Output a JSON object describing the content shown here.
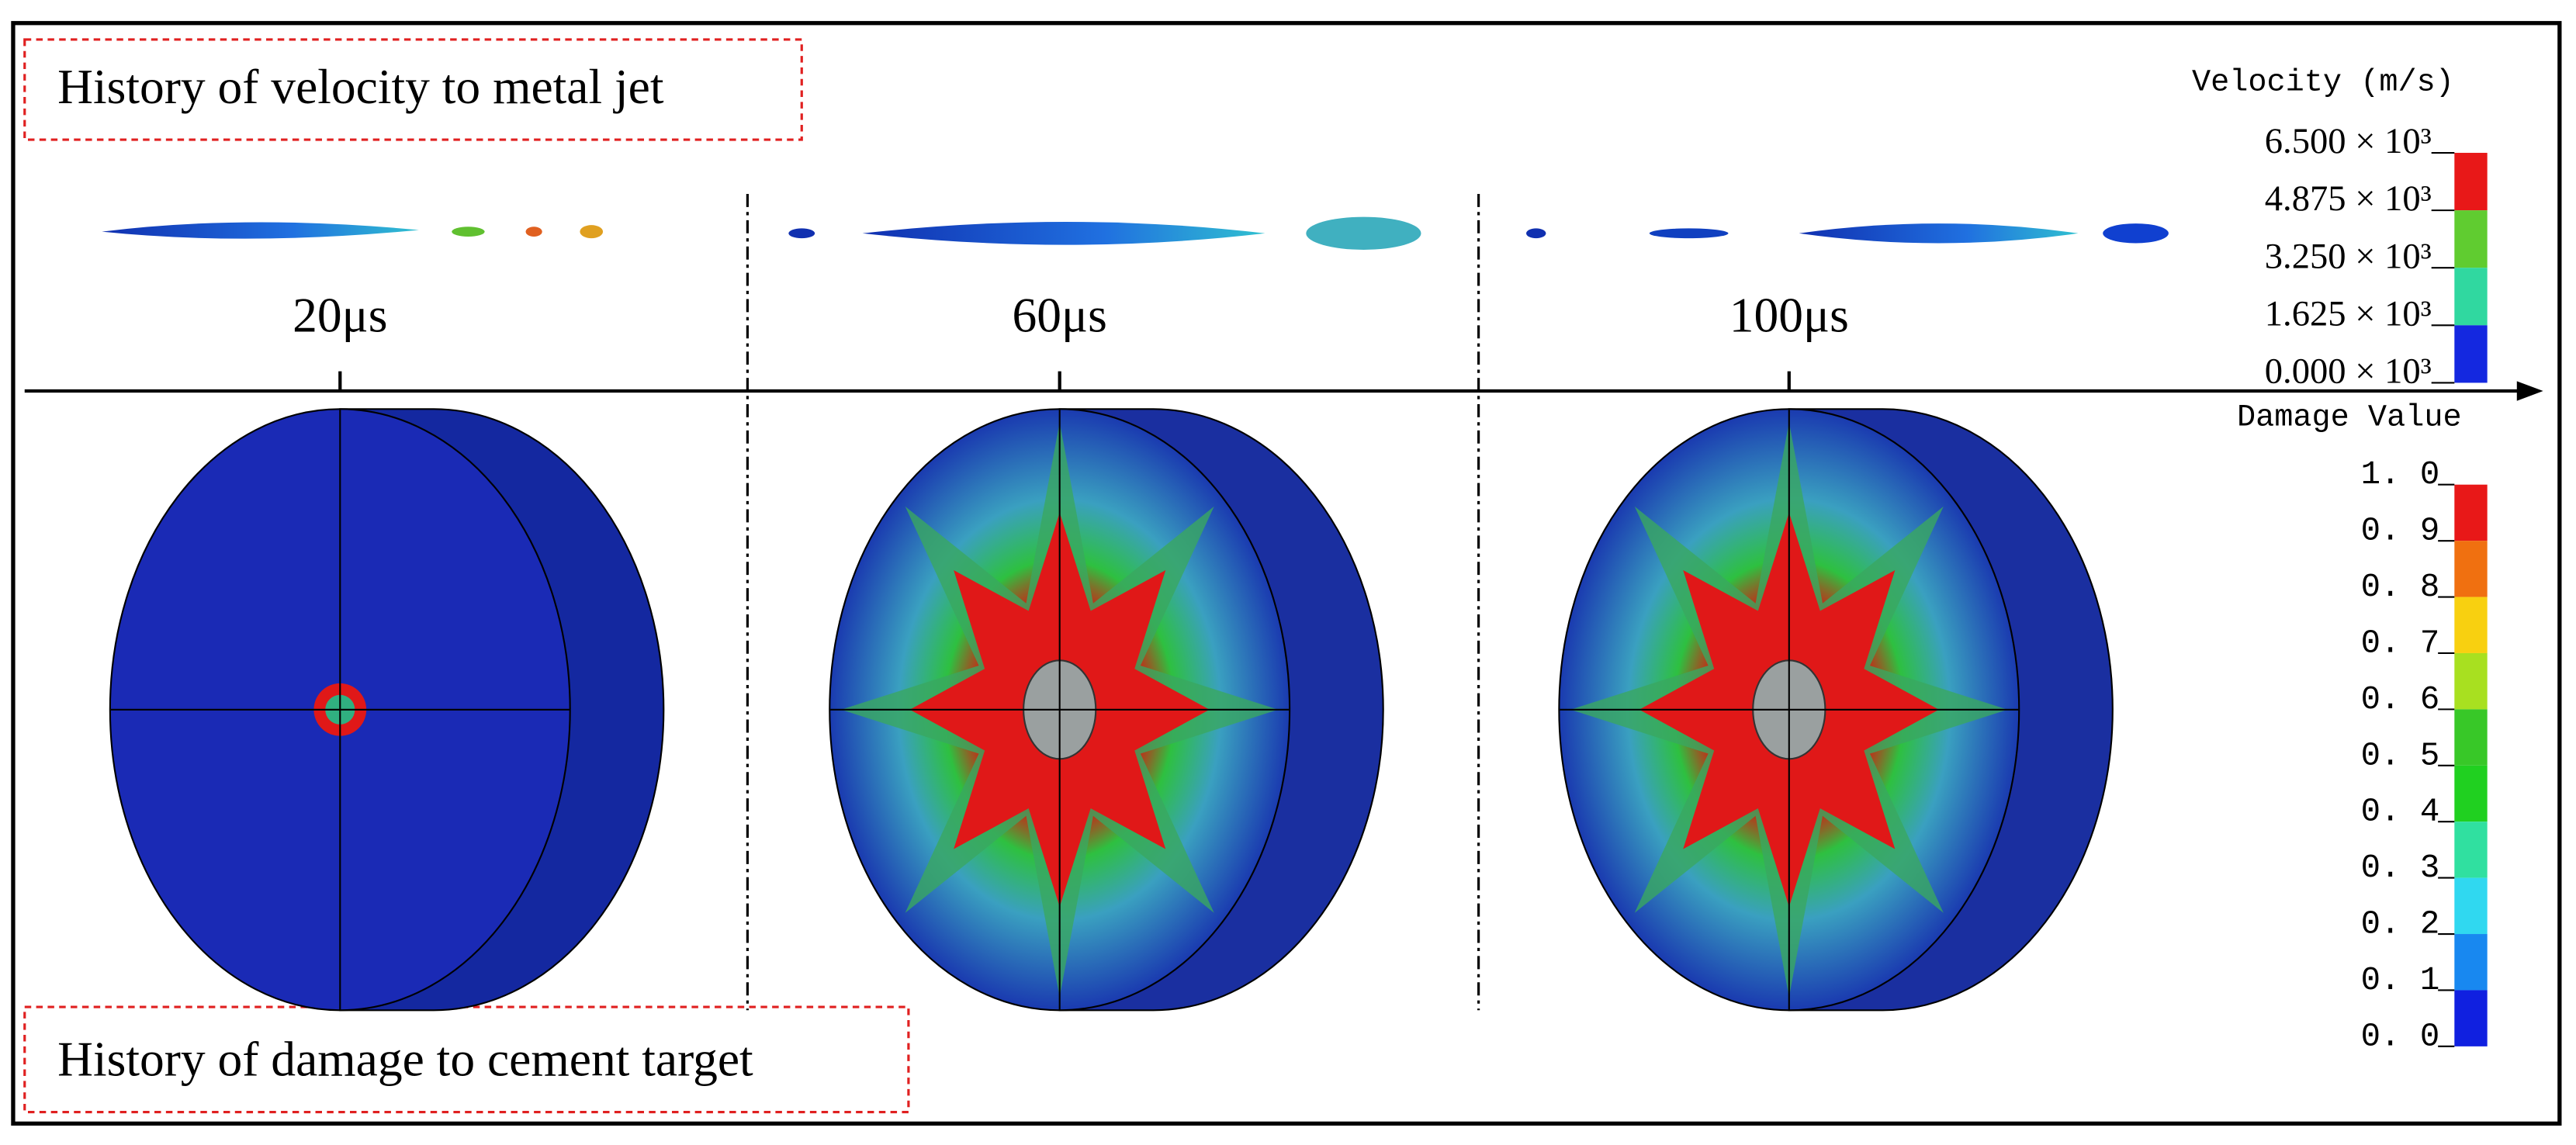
{
  "header": {
    "velocity_title": "History of velocity to metal jet",
    "damage_title": "History of damage to cement target"
  },
  "times": [
    "20μs",
    "60μs",
    "100μs"
  ],
  "velocity_legend": {
    "title": "Velocity (m/s)",
    "labels": [
      "6.500 × 10³",
      "4.875 × 10³",
      "3.250 × 10³",
      "1.625 × 10³",
      "0.000 × 10³"
    ]
  },
  "damage_legend": {
    "title": "Damage Value",
    "labels": [
      "1. 0",
      "0. 9",
      "0. 8",
      "0. 7",
      "0. 6",
      "0. 5",
      "0. 4",
      "0. 3",
      "0. 2",
      "0. 1",
      "0. 0"
    ]
  }
}
